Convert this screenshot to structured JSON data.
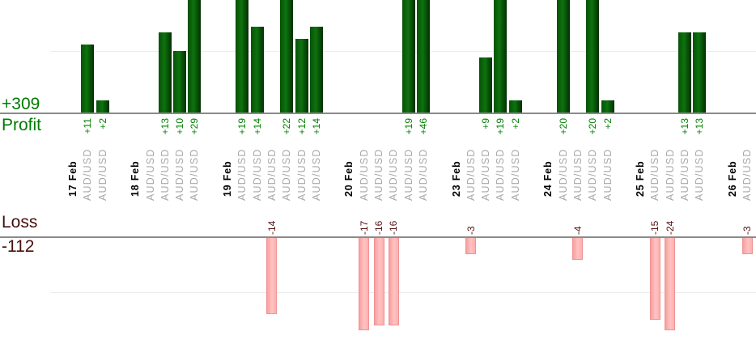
{
  "axis": {
    "profit_total": "+309",
    "profit_label": "Profit",
    "loss_label": "Loss",
    "loss_total": "-112"
  },
  "colors": {
    "profit_bar_green": "#0d730d",
    "profit_text_green": "#008000",
    "loss_bar_pink": "#ffb3b3",
    "loss_bar_border": "#ef9393",
    "loss_text_maroon": "#551010",
    "symbol_text_gray": "#a8a8a8",
    "date_text": "#000000",
    "axis_line_gray": "#8a8a8a",
    "gridline_gray": "#ececec"
  },
  "chart_data": {
    "type": "bar",
    "profit_total": 309,
    "loss_total": -112,
    "gridline_values": {
      "profit_area": 10,
      "loss_area": -10
    },
    "groups": [
      {
        "date": "17 Feb",
        "trades": [
          {
            "v": 11,
            "label": "+11",
            "symbol": "AUD/USD"
          },
          {
            "v": 2,
            "label": "+2",
            "symbol": "AUD/USD"
          }
        ]
      },
      {
        "date": "18 Feb",
        "trades": [
          {
            "v": 0,
            "label": "",
            "symbol": "AUD/USD"
          },
          {
            "v": 13,
            "label": "+13",
            "symbol": "AUD/USD"
          },
          {
            "v": 10,
            "label": "+10",
            "symbol": "AUD/USD"
          },
          {
            "v": 29,
            "label": "+29",
            "symbol": "AUD/USD"
          }
        ]
      },
      {
        "date": "19 Feb",
        "trades": [
          {
            "v": 19,
            "label": "+19",
            "symbol": "AUD/USD"
          },
          {
            "v": 14,
            "label": "+14",
            "symbol": "AUD/USD"
          },
          {
            "v": -14,
            "label": "-14",
            "symbol": "AUD/USD"
          },
          {
            "v": 22,
            "label": "+22",
            "symbol": "AUD/USD"
          },
          {
            "v": 12,
            "label": "+12",
            "symbol": "AUD/USD"
          },
          {
            "v": 14,
            "label": "+14",
            "symbol": "AUD/USD"
          }
        ]
      },
      {
        "date": "20 Feb",
        "trades": [
          {
            "v": -17,
            "label": "-17",
            "symbol": "AUD/USD"
          },
          {
            "v": -16,
            "label": "-16",
            "symbol": "AUD/USD"
          },
          {
            "v": -16,
            "label": "-16",
            "symbol": "AUD/USD"
          },
          {
            "v": 19,
            "label": "+19",
            "symbol": "AUD/USD"
          },
          {
            "v": 46,
            "label": "+46",
            "symbol": "AUD/USD"
          }
        ]
      },
      {
        "date": "23 Feb",
        "trades": [
          {
            "v": -3,
            "label": "-3",
            "symbol": "AUD/USD"
          },
          {
            "v": 9,
            "label": "+9",
            "symbol": "AUD/USD"
          },
          {
            "v": 19,
            "label": "+19",
            "symbol": "AUD/USD"
          },
          {
            "v": 2,
            "label": "+2",
            "symbol": "AUD/USD"
          }
        ]
      },
      {
        "date": "24 Feb",
        "trades": [
          {
            "v": 20,
            "label": "+20",
            "symbol": "AUD/USD"
          },
          {
            "v": -4,
            "label": "-4",
            "symbol": "AUD/USD"
          },
          {
            "v": 20,
            "label": "+20",
            "symbol": "AUD/USD"
          },
          {
            "v": 2,
            "label": "+2",
            "symbol": "AUD/USD"
          }
        ]
      },
      {
        "date": "25 Feb",
        "trades": [
          {
            "v": -15,
            "label": "-15",
            "symbol": "AUD/USD"
          },
          {
            "v": -24,
            "label": "-24",
            "symbol": "AUD/USD"
          },
          {
            "v": 13,
            "label": "+13",
            "symbol": "AUD/USD"
          },
          {
            "v": 13,
            "label": "+13",
            "symbol": "AUD/USD"
          }
        ]
      },
      {
        "date": "26 Feb",
        "trades": [
          {
            "v": -3,
            "label": "-3",
            "symbol": "AUD/USD"
          }
        ]
      }
    ]
  }
}
